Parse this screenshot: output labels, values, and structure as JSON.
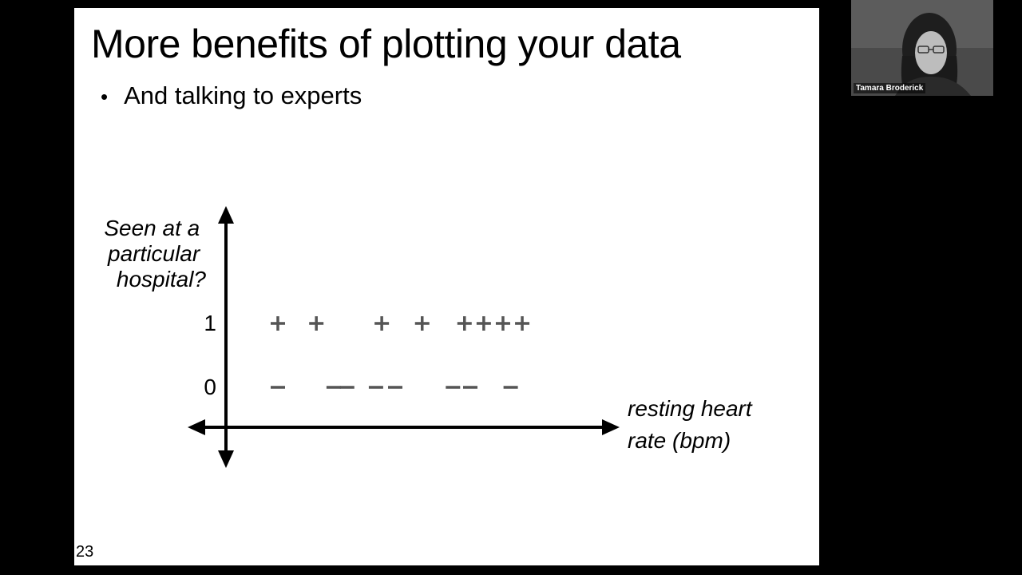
{
  "slide": {
    "title": "More benefits of plotting your data",
    "bullet": "And talking to experts",
    "bullet_marker": "•",
    "number": "23"
  },
  "participant": {
    "name": "Tamara Broderick"
  },
  "chart_data": {
    "type": "scatter",
    "xlabel": "resting heart rate (bpm)",
    "xlabel_lines": [
      "resting heart",
      "rate (bpm)"
    ],
    "ylabel": "Seen at a particular hospital?",
    "ylabel_lines": [
      "Seen at a",
      "particular",
      "hospital?"
    ],
    "y_ticks": [
      {
        "value": 1,
        "label": "1"
      },
      {
        "value": 0,
        "label": "0"
      }
    ],
    "markers": {
      "1": "+",
      "0": "–"
    },
    "x_axis_numbered": false,
    "points": [
      {
        "x": 1.0,
        "y": 1
      },
      {
        "x": 2.0,
        "y": 1
      },
      {
        "x": 3.7,
        "y": 1
      },
      {
        "x": 4.75,
        "y": 1
      },
      {
        "x": 5.85,
        "y": 1
      },
      {
        "x": 6.35,
        "y": 1
      },
      {
        "x": 6.85,
        "y": 1
      },
      {
        "x": 7.35,
        "y": 1
      },
      {
        "x": 1.0,
        "y": 0
      },
      {
        "x": 2.45,
        "y": 0
      },
      {
        "x": 2.8,
        "y": 0
      },
      {
        "x": 3.55,
        "y": 0
      },
      {
        "x": 4.05,
        "y": 0
      },
      {
        "x": 5.55,
        "y": 0
      },
      {
        "x": 6.0,
        "y": 0
      },
      {
        "x": 7.05,
        "y": 0
      }
    ],
    "colors": {
      "axis": "#000000",
      "plus": "#555555",
      "minus": "#555555"
    }
  }
}
